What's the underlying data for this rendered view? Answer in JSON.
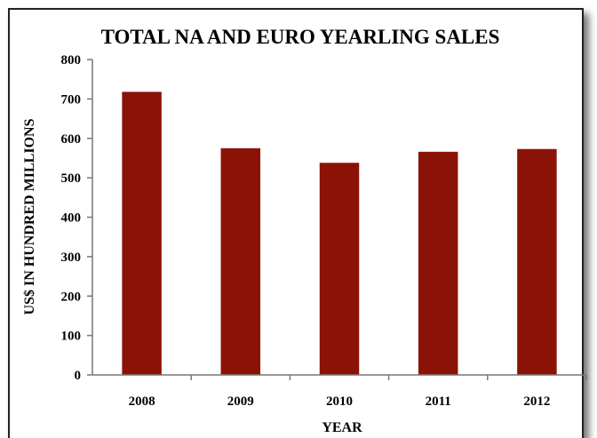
{
  "chart_data": {
    "type": "bar",
    "title": "TOTAL NA AND EURO YEARLING SALES",
    "xlabel": "YEAR",
    "ylabel": "US$ IN HUNDRED MILLIONS",
    "categories": [
      "2008",
      "2009",
      "2010",
      "2011",
      "2012"
    ],
    "values": [
      718,
      575,
      538,
      566,
      573
    ],
    "ylim": [
      0,
      800
    ],
    "yticks": [
      0,
      100,
      200,
      300,
      400,
      500,
      600,
      700,
      800
    ],
    "grid": false,
    "legend": "none",
    "bar_color": "#8b1207"
  }
}
